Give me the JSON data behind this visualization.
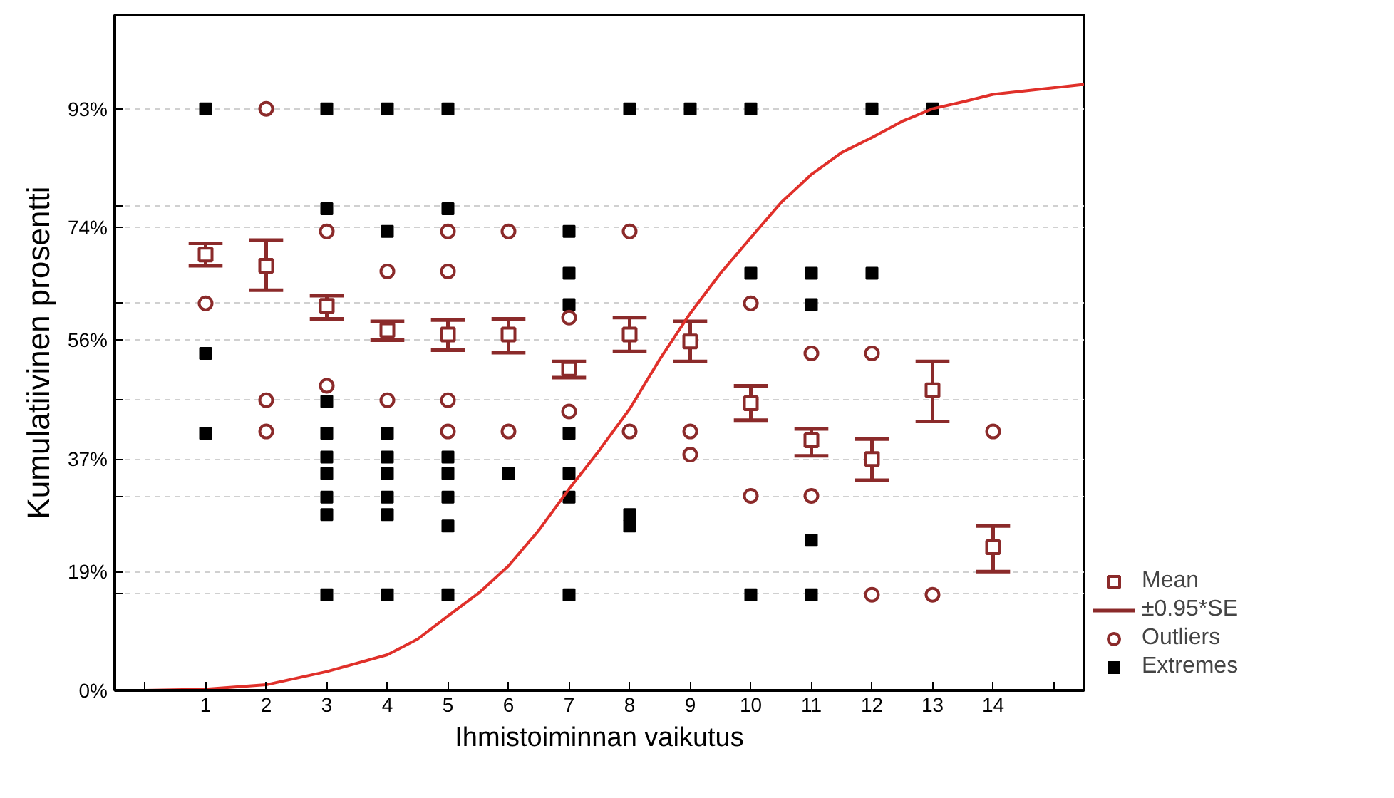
{
  "chart_data": {
    "type": "scatter",
    "xlabel": "Ihmistoiminnan vaikutus",
    "ylabel": "Kumulatiivinen prosentti",
    "xlim": [
      -0.5,
      15.5
    ],
    "xticks": [
      {
        "value": 0,
        "label": null
      },
      1,
      2,
      3,
      4,
      5,
      6,
      7,
      8,
      9,
      10,
      11,
      12,
      13,
      14,
      {
        "value": 15,
        "label": null
      }
    ],
    "ylim": [
      0,
      108
    ],
    "yticks": [
      {
        "value": 0,
        "label": "0%"
      },
      {
        "value": 15.5,
        "label": null
      },
      {
        "value": 19,
        "label": "19%"
      },
      {
        "value": 31,
        "label": null
      },
      {
        "value": 37,
        "label": "37%"
      },
      {
        "value": 46.5,
        "label": null
      },
      {
        "value": 56,
        "label": "56%"
      },
      {
        "value": 62,
        "label": null
      },
      {
        "value": 74,
        "label": "74%"
      },
      {
        "value": 77.5,
        "label": null
      },
      {
        "value": 93,
        "label": "93%"
      }
    ],
    "grid": "y",
    "legend": "right",
    "annotations": [
      "±0.95*SE"
    ],
    "series": [
      {
        "name": "Extremes",
        "marker": "square",
        "color": "#000000",
        "x": [
          1,
          1,
          1,
          3,
          3,
          3,
          3,
          3,
          3,
          3,
          3,
          3,
          4,
          4,
          4,
          4,
          4,
          4,
          4,
          4,
          5,
          5,
          5,
          5,
          5,
          5,
          5,
          6,
          7,
          7,
          7,
          7,
          7,
          7,
          7,
          8,
          8,
          8,
          9,
          10,
          10,
          10,
          11,
          11,
          11,
          11,
          12,
          12,
          13
        ],
        "values": [
          93,
          53.9,
          41.1,
          93,
          77.0,
          46.2,
          41.1,
          37.3,
          34.7,
          30.9,
          28.1,
          15.3,
          93,
          73.4,
          41.1,
          37.3,
          34.7,
          30.9,
          28.1,
          15.3,
          93,
          77.0,
          37.3,
          34.7,
          30.9,
          26.3,
          15.3,
          34.7,
          73.4,
          66.7,
          61.7,
          41.1,
          34.7,
          30.9,
          15.3,
          93,
          28.1,
          26.3,
          93,
          93,
          66.7,
          15.3,
          66.7,
          61.7,
          24.0,
          15.3,
          93,
          66.7,
          93
        ]
      },
      {
        "name": "Outliers",
        "marker": "circle",
        "color": "#8b2a2a",
        "x": [
          1,
          2,
          2,
          2,
          3,
          3,
          4,
          4,
          5,
          5,
          5,
          5,
          6,
          6,
          7,
          7,
          8,
          8,
          9,
          9,
          10,
          10,
          11,
          11,
          12,
          12,
          13,
          14
        ],
        "values": [
          61.9,
          93,
          46.4,
          41.4,
          73.4,
          48.7,
          67.0,
          46.4,
          73.4,
          67.0,
          46.4,
          41.4,
          73.4,
          41.4,
          59.6,
          44.6,
          73.4,
          41.4,
          41.4,
          37.7,
          61.9,
          31.1,
          53.9,
          31.1,
          53.9,
          15.3,
          15.3,
          41.4
        ]
      },
      {
        "name": "Mean",
        "marker": "square",
        "color": "#8b2a2a",
        "x": [
          1,
          2,
          3,
          4,
          5,
          6,
          7,
          8,
          9,
          10,
          11,
          12,
          13,
          14
        ],
        "values": [
          69.7,
          67.9,
          61.5,
          57.6,
          56.9,
          56.9,
          51.4,
          56.9,
          55.8,
          45.9,
          40.0,
          37.0,
          48.0,
          22.9
        ],
        "errors": [
          [
            67.9,
            71.5
          ],
          [
            64.0,
            72.0
          ],
          [
            59.4,
            63.1
          ],
          [
            56.0,
            59.0
          ],
          [
            54.4,
            59.2
          ],
          [
            54.0,
            59.4
          ],
          [
            50.0,
            52.6
          ],
          [
            54.2,
            59.6
          ],
          [
            52.6,
            59.0
          ],
          [
            43.2,
            48.7
          ],
          [
            37.5,
            41.8
          ],
          [
            33.6,
            40.2
          ],
          [
            43.0,
            52.6
          ],
          [
            19.0,
            26.3
          ]
        ]
      },
      {
        "type": "line",
        "color": "#e0302a",
        "x": [
          0,
          1,
          2,
          3,
          4,
          4.5,
          5,
          5.5,
          6,
          6.5,
          7,
          7.5,
          8,
          8.5,
          9,
          9.5,
          10,
          10.5,
          11,
          11.5,
          12,
          12.5,
          13,
          13.5,
          14,
          15.5
        ],
        "values": [
          0,
          0.2,
          0.9,
          3,
          5.7,
          8.2,
          11.9,
          15.5,
          19.9,
          25.6,
          32.2,
          38.4,
          45,
          53,
          60.3,
          66.7,
          72.4,
          78,
          82.5,
          86,
          88.4,
          91,
          93,
          94.1,
          95.3,
          96.9
        ]
      }
    ]
  }
}
